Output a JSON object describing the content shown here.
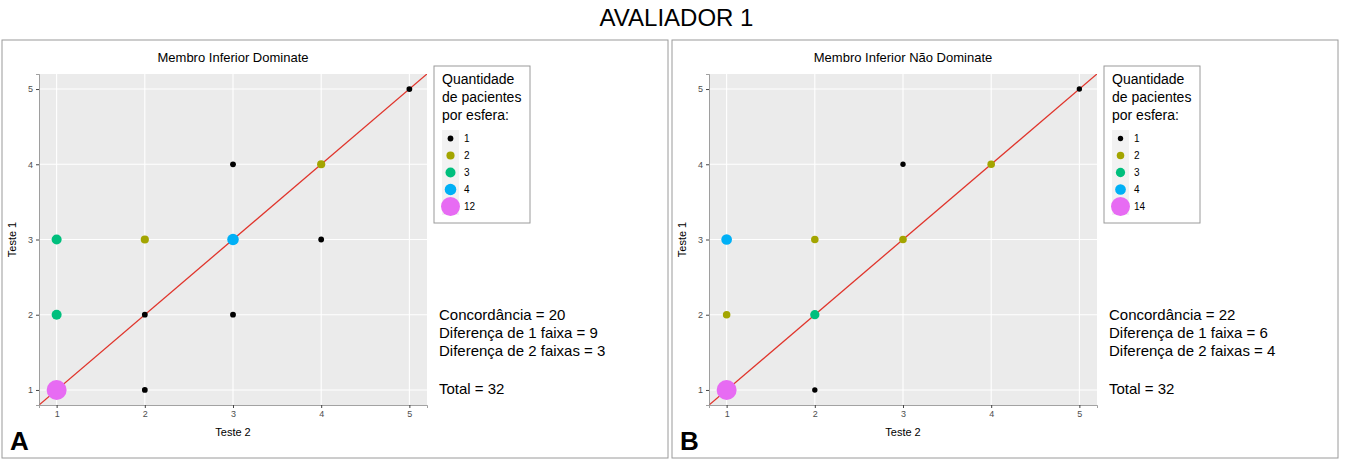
{
  "title": "AVALIADOR 1",
  "chart_data": [
    {
      "type": "scatter",
      "title": "Membro Inferior Dominate",
      "panel": "A",
      "x_label": "Teste 2",
      "y_label": "Teste 1",
      "x": [
        1,
        1,
        1,
        2,
        2,
        2,
        3,
        3,
        3,
        4,
        4,
        5
      ],
      "values": [
        1,
        2,
        3,
        1,
        2,
        3,
        2,
        3,
        4,
        3,
        4,
        5
      ],
      "sizes": [
        12,
        3,
        3,
        1,
        1,
        2,
        1,
        4,
        1,
        1,
        2,
        1
      ],
      "colors": [
        "#E76BF3",
        "#00BF7D",
        "#00BF7D",
        "#000000",
        "#000000",
        "#A3A500",
        "#000000",
        "#00B0F6",
        "#000000",
        "#000000",
        "#A3A500",
        "#000000"
      ],
      "marker": "circle",
      "xlim": [
        0.8,
        5.2
      ],
      "ylim": [
        0.8,
        5.2
      ],
      "xticks": [
        1,
        2,
        3,
        4,
        5
      ],
      "yticks": [
        1,
        2,
        3,
        4,
        5
      ],
      "grid": true,
      "size_legend": {
        "title": [
          "Quantidade",
          "de pacientes",
          "por esfera:"
        ],
        "values": [
          1,
          2,
          3,
          4,
          12
        ],
        "colors": [
          "#000000",
          "#A3A500",
          "#00BF7D",
          "#00B0F6",
          "#E76BF3"
        ]
      },
      "annotations": [
        "Concordância = 20",
        "Diferença de 1 faixa = 9",
        "Diferença de 2 faixas = 3",
        "Total = 32"
      ]
    },
    {
      "type": "scatter",
      "title": "Membro Inferior Não Dominate",
      "panel": "B",
      "x_label": "Teste 2",
      "y_label": "Teste 1",
      "x": [
        1,
        1,
        1,
        2,
        2,
        2,
        3,
        3,
        4,
        5
      ],
      "values": [
        1,
        2,
        3,
        1,
        2,
        3,
        3,
        4,
        4,
        5
      ],
      "sizes": [
        14,
        2,
        4,
        1,
        3,
        2,
        2,
        1,
        2,
        1
      ],
      "colors": [
        "#E76BF3",
        "#A3A500",
        "#00B0F6",
        "#000000",
        "#00BF7D",
        "#A3A500",
        "#A3A500",
        "#000000",
        "#A3A500",
        "#000000"
      ],
      "marker": "circle",
      "xlim": [
        0.8,
        5.2
      ],
      "ylim": [
        0.8,
        5.2
      ],
      "xticks": [
        1,
        2,
        3,
        4,
        5
      ],
      "yticks": [
        1,
        2,
        3,
        4,
        5
      ],
      "grid": true,
      "size_legend": {
        "title": [
          "Quantidade",
          "de pacientes",
          "por esfera:"
        ],
        "values": [
          1,
          2,
          3,
          4,
          14
        ],
        "colors": [
          "#000000",
          "#A3A500",
          "#00BF7D",
          "#00B0F6",
          "#E76BF3"
        ]
      },
      "annotations": [
        "Concordância = 22",
        "Diferença de 1 faixa = 6",
        "Diferença de 2 faixas = 4",
        "Total = 32"
      ]
    }
  ]
}
